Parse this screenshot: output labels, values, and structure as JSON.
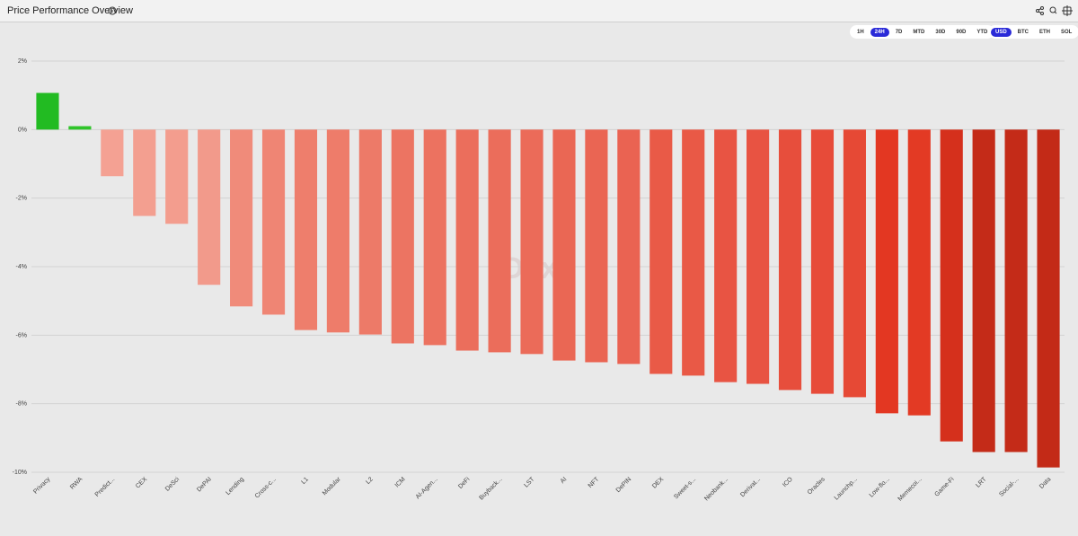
{
  "header": {
    "title": "Price Performance Overview"
  },
  "controls": {
    "timeframes": {
      "options": [
        "1H",
        "24H",
        "7D",
        "MTD",
        "30D",
        "90D",
        "YTD"
      ],
      "selected": 1
    },
    "currencies": {
      "options": [
        "USD",
        "BTC",
        "ETH",
        "SOL"
      ],
      "selected": 0
    }
  },
  "chart_data": {
    "type": "bar",
    "watermark": "Dexu",
    "categories": [
      "Privacy",
      "RWA",
      "Predict...",
      "CEX",
      "DeSci",
      "DePAI",
      "Lending",
      "Cross-c...",
      "L1",
      "Modular",
      "L2",
      "ICM",
      "AI-Agen...",
      "DeFi",
      "Buyback...",
      "LST",
      "AI",
      "NFT",
      "DePIN",
      "DEX",
      "Sweet-s...",
      "Neobank...",
      "Derivat...",
      "ICO",
      "Oracles",
      "Launchp...",
      "Low-flo...",
      "Memecoi...",
      "Game-Fi",
      "LRT",
      "Social-...",
      "Data"
    ],
    "values": [
      1.07,
      0.1,
      -1.36,
      -2.52,
      -2.75,
      -4.53,
      -5.16,
      -5.4,
      -5.85,
      -5.92,
      -5.98,
      -6.24,
      -6.29,
      -6.45,
      -6.5,
      -6.55,
      -6.74,
      -6.79,
      -6.84,
      -7.13,
      -7.18,
      -7.37,
      -7.42,
      -7.6,
      -7.71,
      -7.81,
      -8.28,
      -8.34,
      -9.1,
      -9.41,
      -9.41,
      -9.86
    ],
    "colors": [
      "#22bb22",
      "#2fc42a",
      "#f4a193",
      "#f39f90",
      "#f39d8e",
      "#f29a8b",
      "#f08b7a",
      "#ef8574",
      "#ee7e6c",
      "#ee7c6a",
      "#ed7a68",
      "#ec7462",
      "#ec7260",
      "#eb6e5c",
      "#eb6d5b",
      "#eb6b59",
      "#ea6754",
      "#ea6553",
      "#ea6352",
      "#e95a47",
      "#e95946",
      "#e85443",
      "#e85342",
      "#e74e3c",
      "#e74b39",
      "#e64935",
      "#e33722",
      "#e33a24",
      "#d5301c",
      "#c42b18",
      "#c42b18",
      "#c32a17"
    ],
    "ylim": [
      -10,
      2
    ],
    "yticks": [
      {
        "value": -10,
        "label": "-10%"
      },
      {
        "value": -8,
        "label": "-8%"
      },
      {
        "value": -6,
        "label": "-6%"
      },
      {
        "value": -4,
        "label": "-4%"
      },
      {
        "value": -2,
        "label": "-2%"
      },
      {
        "value": 0,
        "label": "0%"
      },
      {
        "value": 2,
        "label": "2%"
      }
    ],
    "grid": true
  }
}
